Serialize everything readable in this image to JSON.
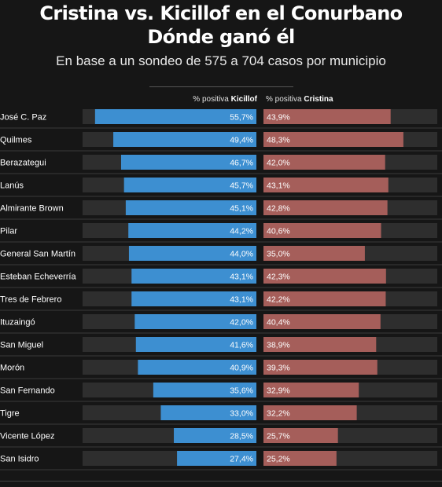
{
  "header": {
    "title_line1": "Cristina vs. Kicillof en el Conurbano",
    "title_line2": "Dónde ganó él",
    "subtitle": "En base a un sondeo de 575 a 704 casos por municipio",
    "left_column_prefix": "% positiva",
    "left_column_name": "Kicillof",
    "right_column_prefix": "% positiva",
    "right_column_name": "Cristina"
  },
  "colors": {
    "background": "#161616",
    "track": "#2e2e2e",
    "kicillof": "#3d8fd1",
    "cristina": "#a55e5a",
    "row_divider": "#3a3a3a"
  },
  "chart_data": {
    "type": "bar",
    "orientation": "horizontal",
    "layout": "butterfly",
    "categories": [
      "José C. Paz",
      "Quilmes",
      "Berazategui",
      "Lanús",
      "Almirante Brown",
      "Pilar",
      "General San Martín",
      "Esteban Echeverría",
      "Tres de Febrero",
      "Ituzaingó",
      "San Miguel",
      "Morón",
      "San Fernando",
      "Tigre",
      "Vicente López",
      "San Isidro"
    ],
    "series": [
      {
        "name": "Kicillof",
        "values": [
          55.7,
          49.4,
          46.7,
          45.7,
          45.1,
          44.2,
          44.0,
          43.1,
          43.1,
          42.0,
          41.6,
          40.9,
          35.6,
          33.0,
          28.5,
          27.4
        ],
        "labels": [
          "55,7%",
          "49,4%",
          "46,7%",
          "45,7%",
          "45,1%",
          "44,2%",
          "44,0%",
          "43,1%",
          "43,1%",
          "42,0%",
          "41,6%",
          "40,9%",
          "35,6%",
          "33,0%",
          "28,5%",
          "27,4%"
        ]
      },
      {
        "name": "Cristina",
        "values": [
          43.9,
          48.3,
          42.0,
          43.1,
          42.8,
          40.6,
          35.0,
          42.3,
          42.2,
          40.4,
          38.9,
          39.3,
          32.9,
          32.2,
          25.7,
          25.2
        ],
        "labels": [
          "43,9%",
          "48,3%",
          "42,0%",
          "43,1%",
          "42,8%",
          "40,6%",
          "35,0%",
          "42,3%",
          "42,2%",
          "40,4%",
          "38,9%",
          "39,3%",
          "32,9%",
          "32,2%",
          "25,7%",
          "25,2%"
        ]
      }
    ],
    "xlim": [
      0,
      60
    ]
  }
}
